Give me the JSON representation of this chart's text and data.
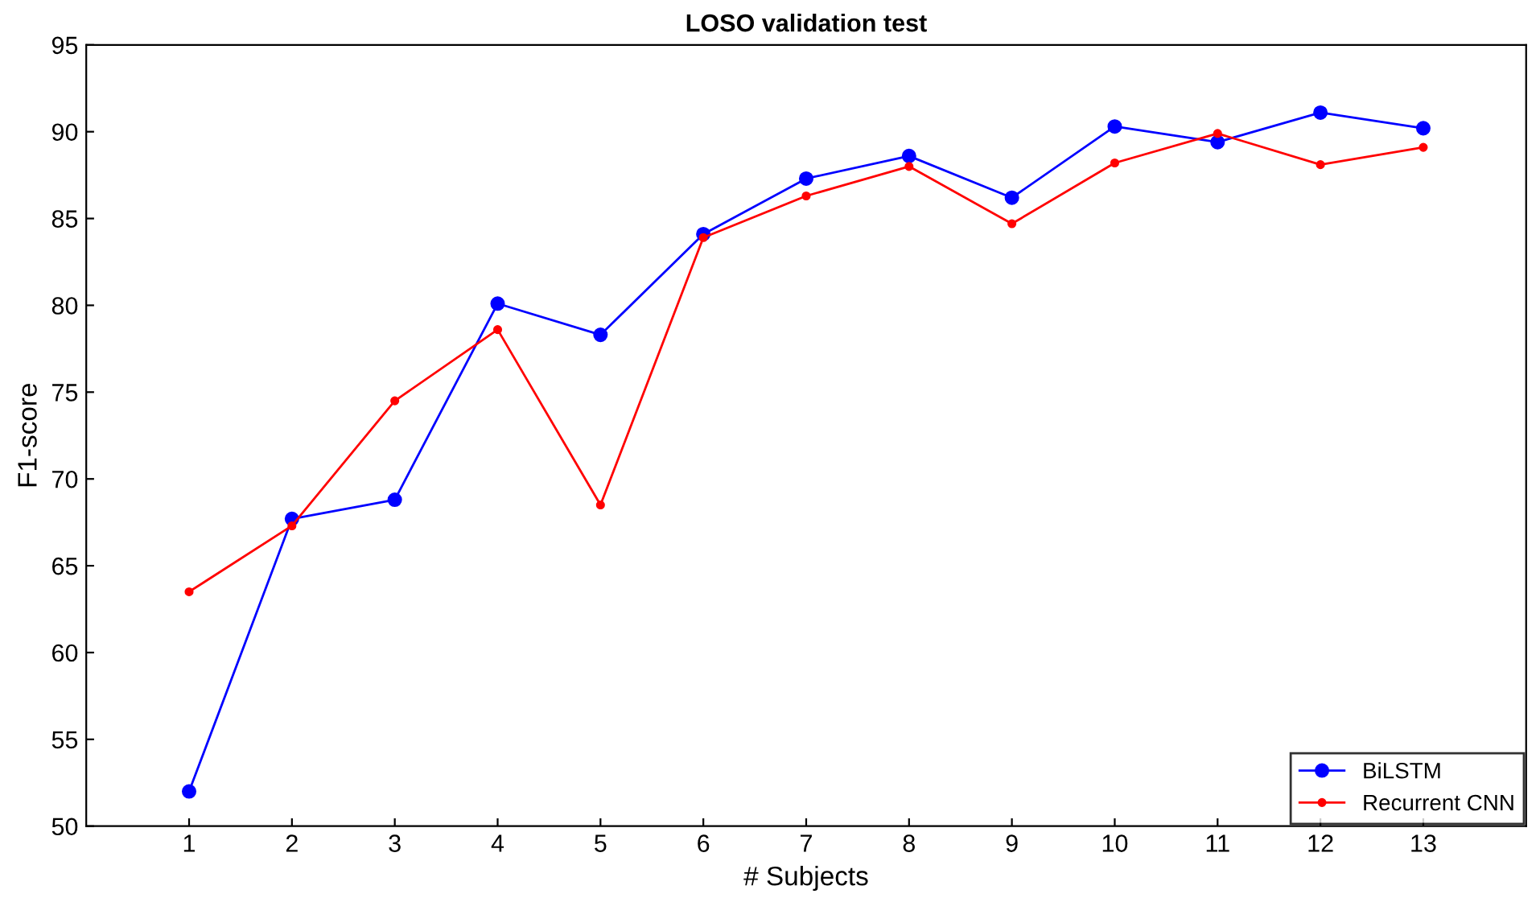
{
  "chart_data": {
    "type": "line",
    "title": "LOSO validation test",
    "xlabel": "# Subjects",
    "ylabel": "F1-score",
    "x": [
      1,
      2,
      3,
      4,
      5,
      6,
      7,
      8,
      9,
      10,
      11,
      12,
      13
    ],
    "series": [
      {
        "name": "BiLSTM",
        "color": "#0000ff",
        "values": [
          52.0,
          67.7,
          68.8,
          80.1,
          78.3,
          84.1,
          87.3,
          88.6,
          86.2,
          90.3,
          89.4,
          91.1,
          90.2
        ]
      },
      {
        "name": "Recurrent CNN",
        "color": "#ff0000",
        "values": [
          63.5,
          67.3,
          74.5,
          78.6,
          68.5,
          83.9,
          86.3,
          88.0,
          84.7,
          88.2,
          89.9,
          88.1,
          89.1
        ]
      }
    ],
    "xlim": [
      0,
      14
    ],
    "xticks": [
      1,
      2,
      3,
      4,
      5,
      6,
      7,
      8,
      9,
      10,
      11,
      12,
      13
    ],
    "ylim": [
      50,
      95
    ],
    "yticks": [
      50,
      55,
      60,
      65,
      70,
      75,
      80,
      85,
      90,
      95
    ],
    "grid": false,
    "legend": "bottom right",
    "marker": "circle",
    "line_style": "solid"
  }
}
